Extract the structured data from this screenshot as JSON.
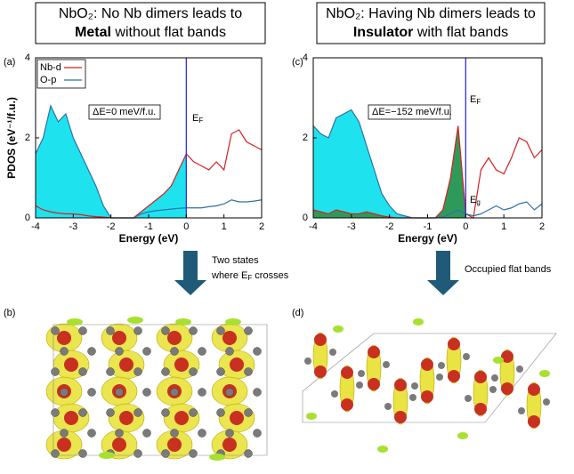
{
  "panels": [
    {
      "title": {
        "line1": "NbO₂: No Nb dimers leads to",
        "bold": "Metal",
        "rest": " without flat bands"
      }
    },
    {
      "title": {
        "line1": "NbO₂: Having Nb dimers leads to",
        "bold": "Insulator",
        "rest": " with flat bands"
      }
    }
  ],
  "chart_data": [
    {
      "type": "line",
      "panel_label": "(a)",
      "ylabel": "PDOS (eV⁻¹/f.u.)",
      "xlabel": "Energy (eV)",
      "x": [
        -4,
        -3.8,
        -3.6,
        -3.4,
        -3.2,
        -3,
        -2.8,
        -2.6,
        -2.4,
        -2.2,
        -2,
        -1.8,
        -1.6,
        -1.4,
        -1.2,
        -1,
        -0.8,
        -0.6,
        -0.4,
        -0.2,
        0,
        0.2,
        0.4,
        0.6,
        0.8,
        1,
        1.2,
        1.4,
        1.6,
        1.8,
        2
      ],
      "series": [
        {
          "name": "Nb-d",
          "color": "#d42020",
          "fill": "#1ee3ee",
          "values": [
            0.3,
            0.2,
            0.15,
            0.12,
            0.1,
            0.1,
            0.08,
            0.05,
            0.03,
            0.02,
            0,
            0,
            0,
            0,
            0.15,
            0.3,
            0.45,
            0.6,
            0.8,
            1.2,
            1.6,
            1.4,
            1.3,
            1.2,
            1.4,
            1.2,
            2.1,
            2.2,
            1.9,
            1.8,
            1.7
          ]
        },
        {
          "name": "O-p",
          "color": "#2f6fa8",
          "fill": "#1ee3ee",
          "values": [
            1.6,
            2.0,
            2.8,
            2.4,
            2.6,
            2.0,
            1.6,
            1.2,
            0.8,
            0.3,
            0,
            0,
            0,
            0,
            0.1,
            0.15,
            0.18,
            0.2,
            0.22,
            0.24,
            0.25,
            0.25,
            0.25,
            0.28,
            0.3,
            0.35,
            0.45,
            0.4,
            0.4,
            0.42,
            0.45
          ]
        }
      ],
      "xlim": [
        -4,
        2
      ],
      "xticks": [
        -4,
        -3,
        -2,
        -1,
        0,
        1,
        2
      ],
      "ylim": [
        0,
        4
      ],
      "yticks": [
        0,
        2,
        4
      ],
      "legend": "upper left",
      "fermi_energy": 0,
      "annotations": {
        "box": "ΔE=0 meV/f.u.",
        "fermi": {
          "main": "E",
          "sub": "F"
        }
      }
    },
    {
      "type": "line",
      "panel_label": "(c)",
      "xlabel": "Energy (eV)",
      "x": [
        -4,
        -3.8,
        -3.6,
        -3.4,
        -3.2,
        -3,
        -2.8,
        -2.6,
        -2.4,
        -2.2,
        -2,
        -1.8,
        -1.6,
        -1.4,
        -1.2,
        -1,
        -0.8,
        -0.6,
        -0.4,
        -0.2,
        0,
        0.2,
        0.4,
        0.6,
        0.8,
        1,
        1.2,
        1.4,
        1.6,
        1.8,
        2
      ],
      "series": [
        {
          "color": "#d42020",
          "fill": "#2e9a5a",
          "values": [
            0.2,
            0.15,
            0.1,
            0.2,
            0.15,
            0.1,
            0.1,
            0.15,
            0.1,
            0.05,
            0.02,
            0,
            0,
            0,
            0,
            0,
            0,
            0.2,
            1.0,
            2.3,
            0.1,
            0,
            1.2,
            1.5,
            1.2,
            1.1,
            1.5,
            2.0,
            1.9,
            1.5,
            1.7
          ]
        },
        {
          "color": "#2f6fa8",
          "fill": "#1ee3ee",
          "values": [
            2.3,
            2.1,
            2.0,
            2.5,
            2.6,
            2.7,
            2.4,
            1.8,
            1.2,
            0.6,
            0.3,
            0.1,
            0.05,
            0,
            0,
            0,
            0,
            0.02,
            0.1,
            0.2,
            0.1,
            0.05,
            0.1,
            0.2,
            0.3,
            0.2,
            0.25,
            0.35,
            0.4,
            0.2,
            0.35
          ]
        }
      ],
      "xlim": [
        -4,
        2
      ],
      "xticks": [
        -4,
        -3,
        -2,
        -1,
        0,
        1,
        2
      ],
      "ylim": [
        0,
        4
      ],
      "yticks": [
        0,
        2,
        4
      ],
      "fermi_energy": 0,
      "annotations": {
        "box": "ΔE=−152 meV/f.u.",
        "fermi": {
          "main": "E",
          "sub": "F"
        },
        "gap": {
          "main": "E",
          "sub": "g"
        }
      }
    }
  ],
  "arrows": [
    {
      "lines": [
        {
          "text": "Two states"
        },
        {
          "text": "where E",
          "sub": "F",
          "rest": " crosses"
        }
      ]
    },
    {
      "lines": [
        {
          "text": "Occupied flat bands"
        }
      ]
    }
  ],
  "images": [
    {
      "label": "(b)"
    },
    {
      "label": "(d)"
    }
  ]
}
